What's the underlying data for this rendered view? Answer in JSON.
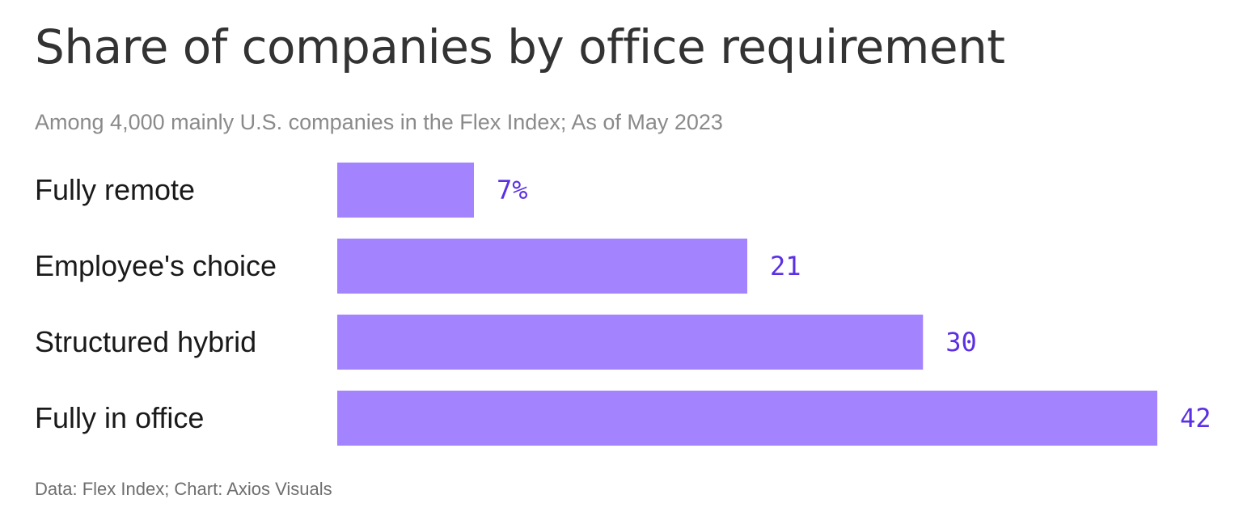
{
  "chart_data": {
    "type": "bar",
    "orientation": "horizontal",
    "title": "Share of companies by office requirement",
    "subtitle": "Among 4,000 mainly U.S. companies in the Flex Index; As of May 2023",
    "categories": [
      "Fully remote",
      "Employee's choice",
      "Structured hybrid",
      "Fully in office"
    ],
    "values": [
      7,
      21,
      30,
      42
    ],
    "value_labels": [
      "7%",
      "21",
      "30",
      "42"
    ],
    "xlim": [
      0,
      42
    ],
    "grid": false,
    "legend": "none",
    "source": "Data: Flex Index; Chart: Axios Visuals",
    "colors": {
      "bar": "#a383fe",
      "value_label": "#5b2fe3",
      "title": "#333333",
      "subtitle": "#8a8a8a",
      "category_label": "#1a1a1a"
    }
  }
}
